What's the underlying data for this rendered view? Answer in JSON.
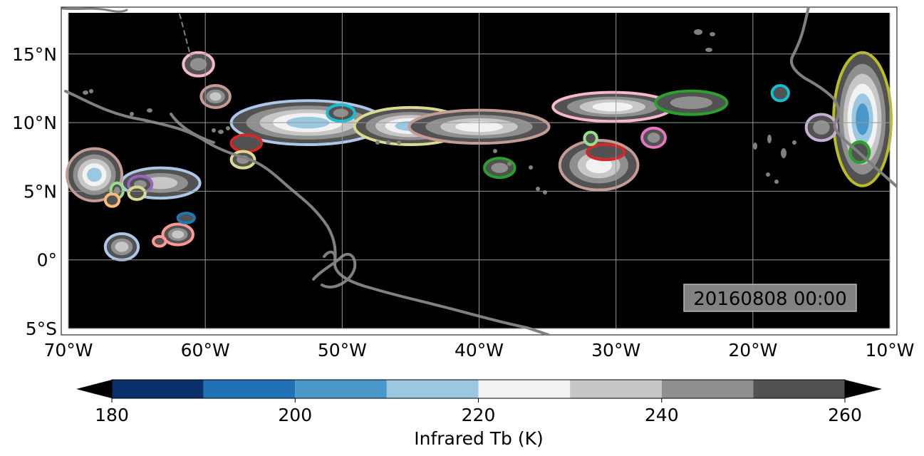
{
  "map": {
    "lon_range": [
      -70,
      -10
    ],
    "lat_range": [
      -5,
      18
    ],
    "lon_ticks": [
      {
        "value": -70,
        "label": "70°W"
      },
      {
        "value": -60,
        "label": "60°W"
      },
      {
        "value": -50,
        "label": "50°W"
      },
      {
        "value": -40,
        "label": "40°W"
      },
      {
        "value": -30,
        "label": "30°W"
      },
      {
        "value": -20,
        "label": "20°W"
      },
      {
        "value": -10,
        "label": "10°W"
      }
    ],
    "lat_ticks": [
      {
        "value": 15,
        "label": "15°N"
      },
      {
        "value": 10,
        "label": "10°N"
      },
      {
        "value": 5,
        "label": "5°N"
      },
      {
        "value": 0,
        "label": "0°"
      },
      {
        "value": -5,
        "label": "5°S"
      }
    ],
    "background_color": "#000000",
    "coastline_color": "#808080",
    "grid": true,
    "timestamp": "20160808 00:00"
  },
  "colorbar": {
    "label": "Infrared Tb (K)",
    "bounds": [
      180,
      190,
      200,
      210,
      220,
      230,
      240,
      250,
      260
    ],
    "colors": [
      "#08306b",
      "#2171b5",
      "#4a98c9",
      "#9ac8e0",
      "#f2f2f2",
      "#c7c7c7",
      "#8f8f8f",
      "#525252"
    ],
    "ticks": [
      {
        "value": 180,
        "label": "180"
      },
      {
        "value": 200,
        "label": "200"
      },
      {
        "value": 220,
        "label": "220"
      },
      {
        "value": 240,
        "label": "240"
      },
      {
        "value": 260,
        "label": "260"
      }
    ],
    "extend": "both",
    "under_color": "#000000",
    "over_color": "#000000"
  },
  "cloud_systems": [
    {
      "id": "itcz-west-band",
      "lon": [
        -66,
        -60.5
      ],
      "lat": [
        4.6,
        6.6
      ],
      "outline": "#aec7e8",
      "levels": 3
    },
    {
      "id": "sa-coast-blob",
      "lon": [
        -70,
        -66.2
      ],
      "lat": [
        4.4,
        8
      ],
      "outline": "#c49c94",
      "levels": 5
    },
    {
      "id": "small-66-5",
      "lon": [
        -66.8,
        -66.1
      ],
      "lat": [
        4.6,
        5.5
      ],
      "outline": "#98df8a",
      "levels": 2
    },
    {
      "id": "small-67-4",
      "lon": [
        -67.2,
        -66.4
      ],
      "lat": [
        4.0,
        4.7
      ],
      "outline": "#ffbb78",
      "levels": 1
    },
    {
      "id": "purple-64-5",
      "lon": [
        -65.5,
        -64
      ],
      "lat": [
        5.0,
        6.0
      ],
      "outline": "#9467bd",
      "levels": 2
    },
    {
      "id": "yellow-65-5",
      "lon": [
        -65.5,
        -64.5
      ],
      "lat": [
        4.5,
        5.2
      ],
      "outline": "#dbdb8d",
      "levels": 1
    },
    {
      "id": "pink-62-2",
      "lon": [
        -63,
        -61
      ],
      "lat": [
        1.2,
        2.5
      ],
      "outline": "#ff9896",
      "levels": 3
    },
    {
      "id": "blue-61-3",
      "lon": [
        -61.9,
        -60.9
      ],
      "lat": [
        2.8,
        3.3
      ],
      "outline": "#1f77b4",
      "levels": 1
    },
    {
      "id": "blue-66-1",
      "lon": [
        -67.2,
        -65
      ],
      "lat": [
        0.1,
        1.8
      ],
      "outline": "#aec7e8",
      "levels": 3
    },
    {
      "id": "pink-63-1",
      "lon": [
        -63.7,
        -63
      ],
      "lat": [
        1.1,
        1.6
      ],
      "outline": "#ff9896",
      "levels": 1
    },
    {
      "id": "pink-60-15",
      "lon": [
        -61.5,
        -59.5
      ],
      "lat": [
        13.5,
        15
      ],
      "outline": "#f7b6d2",
      "levels": 2
    },
    {
      "id": "brown-59-12",
      "lon": [
        -60.2,
        -58.3
      ],
      "lat": [
        11.2,
        12.6
      ],
      "outline": "#c49c94",
      "levels": 3
    },
    {
      "id": "central-west-band",
      "lon": [
        -58,
        -47
      ],
      "lat": [
        8.5,
        11.5
      ],
      "outline": "#aec7e8",
      "levels": 5
    },
    {
      "id": "central-band",
      "lon": [
        -49,
        -41
      ],
      "lat": [
        8.5,
        11
      ],
      "outline": "#dbdb8d",
      "levels": 5
    },
    {
      "id": "central-east-band",
      "lon": [
        -45,
        -35
      ],
      "lat": [
        8.6,
        10.8
      ],
      "outline": "#c49c94",
      "levels": 4
    },
    {
      "id": "cyan-50-11",
      "lon": [
        -51,
        -49.2
      ],
      "lat": [
        10.2,
        11.2
      ],
      "outline": "#17becf",
      "levels": 2
    },
    {
      "id": "red-57-8",
      "lon": [
        -58,
        -56
      ],
      "lat": [
        8,
        9
      ],
      "outline": "#d62728",
      "levels": 1
    },
    {
      "id": "yellow-57-7",
      "lon": [
        -58,
        -56.5
      ],
      "lat": [
        6.8,
        7.8
      ],
      "outline": "#dbdb8d",
      "levels": 2
    },
    {
      "id": "green-38-7",
      "lon": [
        -39.5,
        -37.5
      ],
      "lat": [
        6.1,
        7.3
      ],
      "outline": "#2ca02c",
      "levels": 2
    },
    {
      "id": "east-band-12n",
      "lon": [
        -34.5,
        -26
      ],
      "lat": [
        10.2,
        12.1
      ],
      "outline": "#f7b6d2",
      "levels": 4
    },
    {
      "id": "green-24-12",
      "lon": [
        -27,
        -22
      ],
      "lat": [
        10.7,
        12.2
      ],
      "outline": "#2ca02c",
      "levels": 2
    },
    {
      "id": "brown-31-7",
      "lon": [
        -34,
        -28.5
      ],
      "lat": [
        5.2,
        8.6
      ],
      "outline": "#c49c94",
      "levels": 4
    },
    {
      "id": "red-31-8",
      "lon": [
        -32,
        -29.5
      ],
      "lat": [
        7.4,
        8.3
      ],
      "outline": "#d62728",
      "levels": 1
    },
    {
      "id": "green-32-9",
      "lon": [
        -32.2,
        -31.5
      ],
      "lat": [
        8.5,
        9.2
      ],
      "outline": "#98df8a",
      "levels": 1
    },
    {
      "id": "purple-27-9",
      "lon": [
        -28,
        -26.5
      ],
      "lat": [
        8.3,
        9.5
      ],
      "outline": "#e377c2",
      "levels": 2
    },
    {
      "id": "cyan-18-12",
      "lon": [
        -18.5,
        -17.5
      ],
      "lat": [
        11.7,
        12.6
      ],
      "outline": "#17becf",
      "levels": 1
    },
    {
      "id": "africa-coast",
      "lon": [
        -14,
        -10
      ],
      "lat": [
        5.5,
        15
      ],
      "outline": "#bcbd22",
      "levels": 6
    },
    {
      "id": "purple-15-10",
      "lon": [
        -16,
        -14
      ],
      "lat": [
        8.8,
        10.5
      ],
      "outline": "#c5b0d5",
      "levels": 2
    },
    {
      "id": "green-12-8",
      "lon": [
        -12.8,
        -11.6
      ],
      "lat": [
        7.2,
        8.5
      ],
      "outline": "#2ca02c",
      "levels": 1
    }
  ]
}
